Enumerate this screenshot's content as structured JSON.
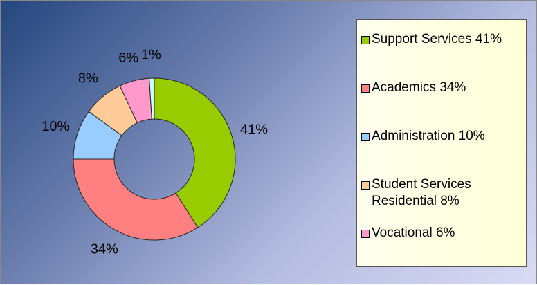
{
  "chart_data": {
    "type": "donut",
    "categories": [
      "Support Services",
      "Academics",
      "Administration",
      "Student Services Residential",
      "Vocational",
      null
    ],
    "values": [
      41,
      34,
      10,
      8,
      6,
      1
    ],
    "value_labels": [
      "41%",
      "34%",
      "10%",
      "8%",
      "6%",
      "1%"
    ],
    "colors": [
      "#99cc00",
      "#ff8080",
      "#99ccff",
      "#ffcc99",
      "#ff99cc",
      "#ccffff"
    ],
    "legend": "right"
  }
}
